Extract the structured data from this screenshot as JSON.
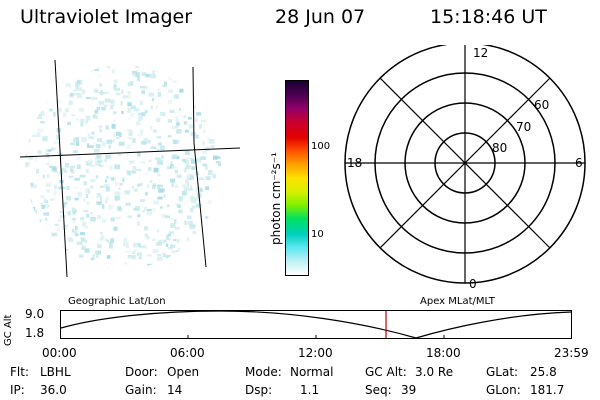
{
  "header": {
    "instrument": "Ultraviolet Imager",
    "date": "28 Jun 07",
    "time": "15:18:46 UT"
  },
  "colorbar": {
    "unit_label": "photon cm⁻²s⁻¹",
    "tick_100": "100",
    "tick_10": "10",
    "colors": [
      "#1a0030",
      "#4a0050",
      "#90006a",
      "#c80030",
      "#e00000",
      "#ff5000",
      "#ffa000",
      "#ffe000",
      "#d8f000",
      "#80f000",
      "#00e060",
      "#00d0c0",
      "#60e8f0",
      "#c0f0f4",
      "#ffffff"
    ]
  },
  "polar_plot": {
    "mlt_labels": {
      "top": "12",
      "left": "18",
      "right": "6",
      "bottom": "0"
    },
    "lat_labels": [
      "60",
      "70",
      "80"
    ]
  },
  "timeline": {
    "y_axis_label": "GC Alt",
    "y_ticks": [
      "9.0",
      "1.8"
    ],
    "left_caption": "Geographic Lat/Lon",
    "right_caption": "Apex MLat/MLT",
    "x_ticks": [
      "00:00",
      "06:00",
      "12:00",
      "18:00",
      "23:59"
    ],
    "marker_color": "#c00000"
  },
  "status": {
    "flt_label": "Flt:",
    "flt_value": "LBHL",
    "ip_label": "IP:",
    "ip_value": "36.0",
    "door_label": "Door:",
    "door_value": "Open",
    "gain_label": "Gain:",
    "gain_value": "14",
    "mode_label": "Mode:",
    "mode_value": "Normal",
    "dsp_label": "Dsp:",
    "dsp_value": "1.1",
    "gcalt_label": "GC Alt:",
    "gcalt_value": "3.0 Re",
    "seq_label": "Seq:",
    "seq_value": "39",
    "glat_label": "GLat:",
    "glat_value": "25.8",
    "glon_label": "GLon:",
    "glon_value": "181.7"
  }
}
